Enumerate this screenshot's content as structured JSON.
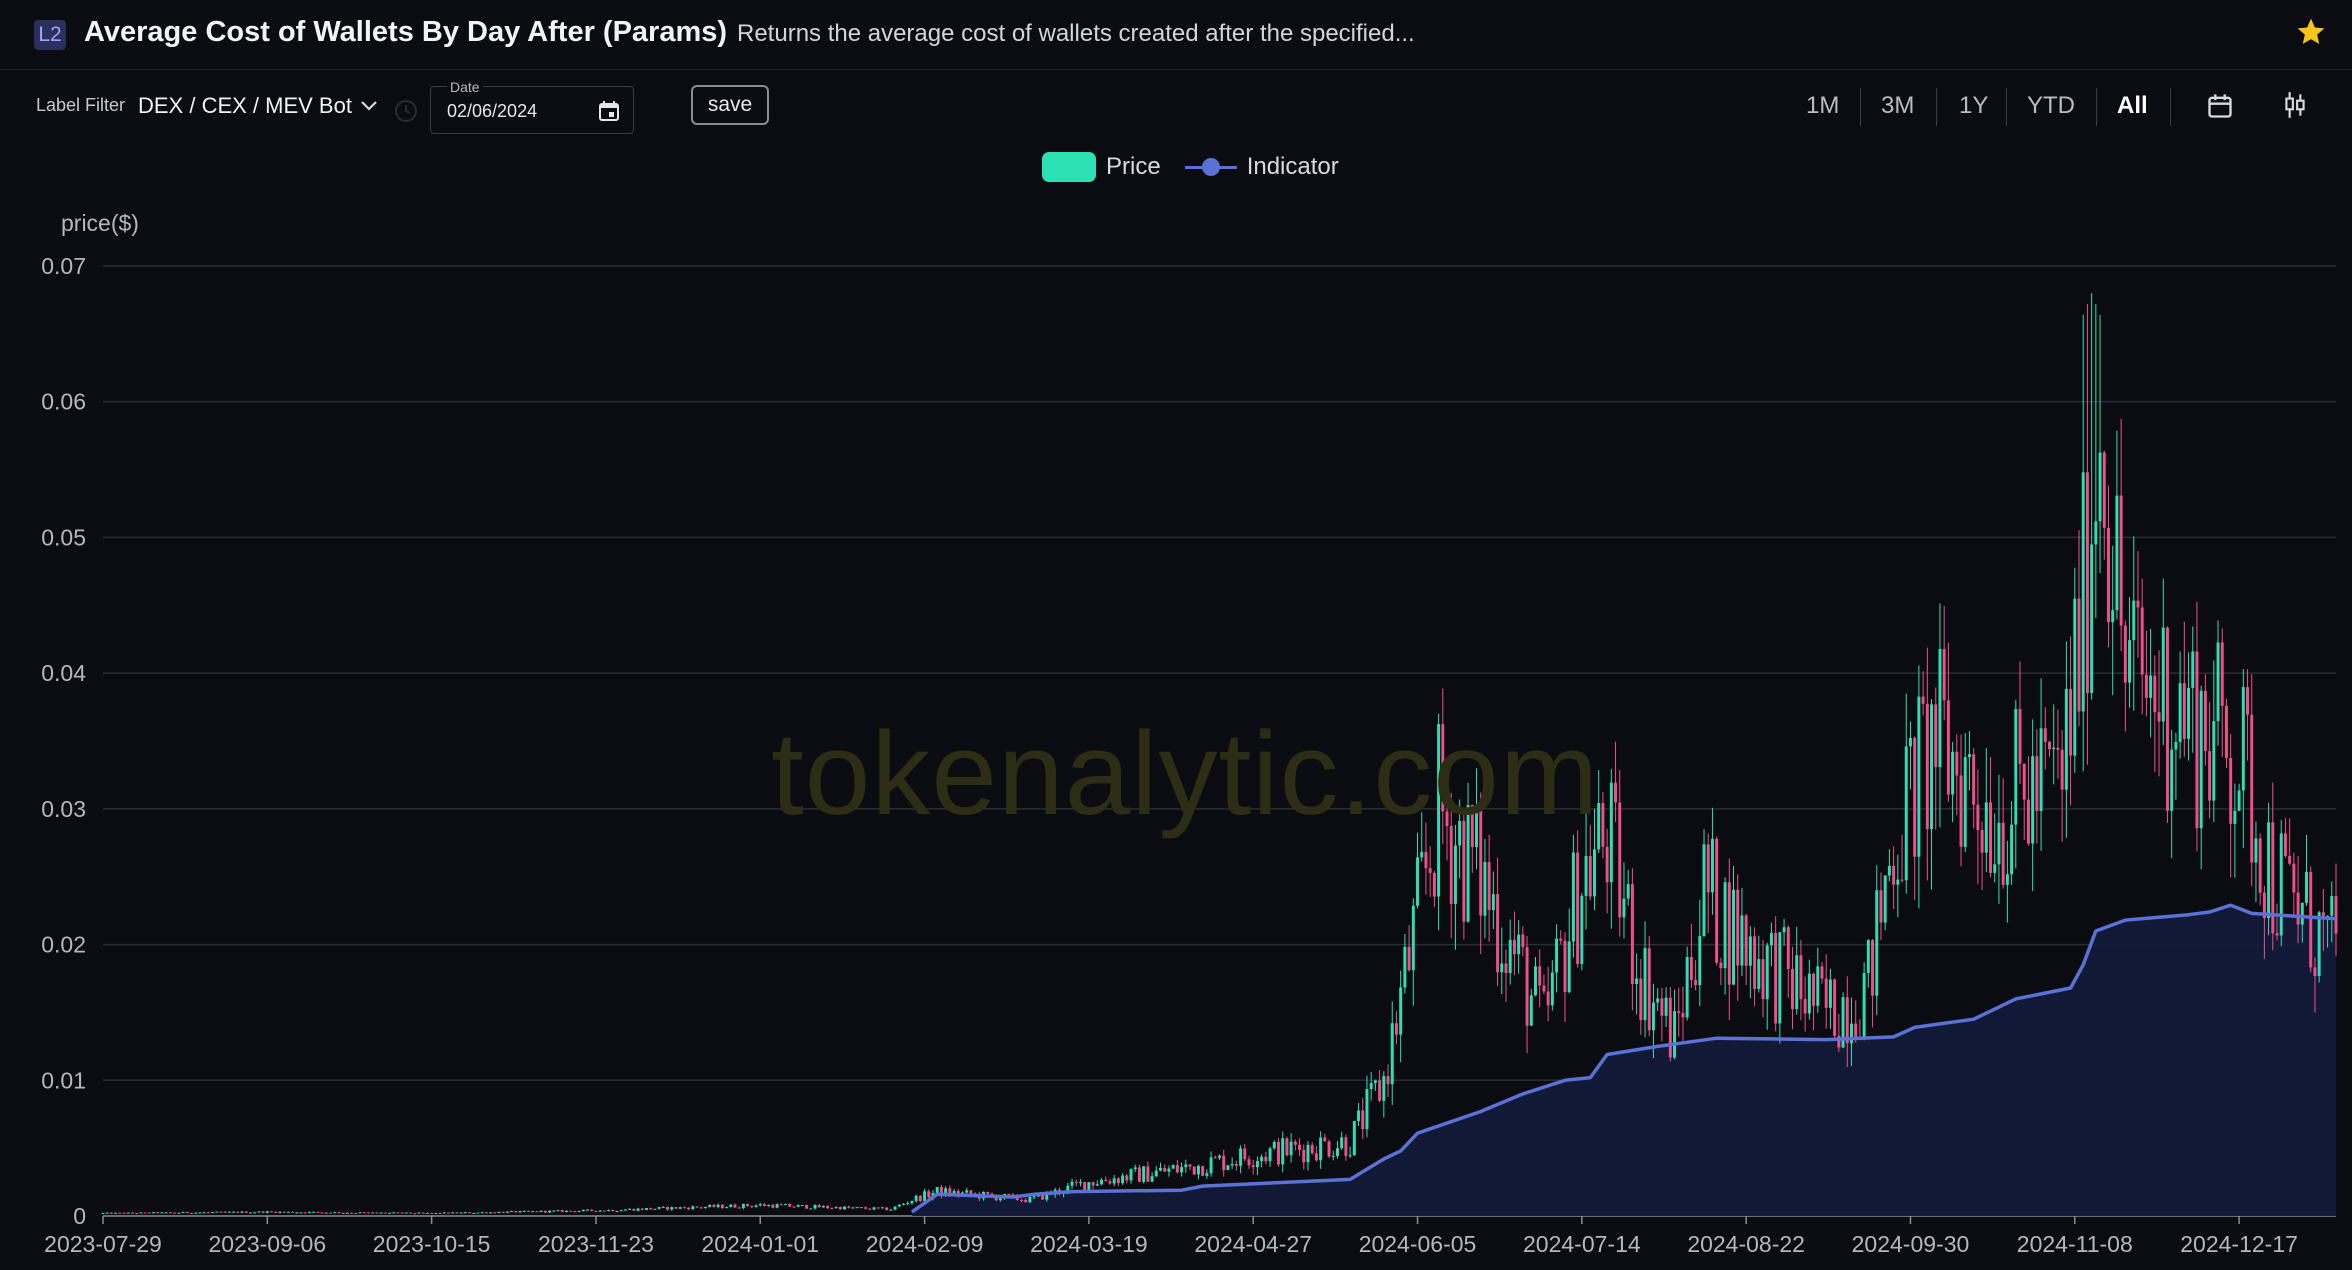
{
  "header": {
    "badge": "L2",
    "title": "Average Cost of Wallets By Day After (Params)",
    "subtitle": "Returns the average cost of wallets created after the specified...",
    "star_icon": "star-icon",
    "star_color": "#f5c518"
  },
  "controls": {
    "label_filter_label": "Label Filter",
    "label_filter_value": "DEX / CEX / MEV Bot",
    "date_label": "Date",
    "date_value": "02/06/2024",
    "save_label": "save",
    "ranges": [
      "1M",
      "3M",
      "1Y",
      "YTD",
      "All"
    ],
    "active_range": "All",
    "icons": [
      "chevron-down-icon",
      "clock-icon",
      "calendar-icon",
      "candlestick-icon"
    ]
  },
  "watermark": "tokenalytic.com",
  "colors": {
    "up": "#2de0b4",
    "down": "#f0508a",
    "indicator": "#5a71d6",
    "indicator_fill": "#131a3a",
    "grid": "#2a2c34",
    "background": "#0b0c11"
  },
  "chart_data": {
    "type": "candlestick",
    "title": "",
    "ylabel": "price($)",
    "xlabel": "",
    "ylim": [
      0,
      0.07
    ],
    "y_ticks": [
      "0",
      "0.01",
      "0.02",
      "0.03",
      "0.04",
      "0.05",
      "0.06",
      "0.07"
    ],
    "x_ticks": [
      "2023-07-29",
      "2023-09-06",
      "2023-10-15",
      "2023-11-23",
      "2024-01-01",
      "2024-02-09",
      "2024-03-19",
      "2024-04-27",
      "2024-06-05",
      "2024-07-14",
      "2024-08-22",
      "2024-09-30",
      "2024-11-08",
      "2024-12-17"
    ],
    "x_range": [
      "2023-07-29",
      "2025-01-09"
    ],
    "grid": true,
    "legend_position": "top-center",
    "series": [
      {
        "name": "Price",
        "kind": "candlestick",
        "close_keypoints": [
          [
            "2023-07-29",
            0.0002
          ],
          [
            "2023-09-06",
            0.0003
          ],
          [
            "2023-10-15",
            0.0002
          ],
          [
            "2023-11-23",
            0.0004
          ],
          [
            "2024-01-01",
            0.0008
          ],
          [
            "2024-02-01",
            0.0005
          ],
          [
            "2024-02-06",
            0.0012
          ],
          [
            "2024-02-12",
            0.0018
          ],
          [
            "2024-03-05",
            0.0012
          ],
          [
            "2024-03-19",
            0.0025
          ],
          [
            "2024-04-10",
            0.0035
          ],
          [
            "2024-04-27",
            0.0045
          ],
          [
            "2024-05-20",
            0.0055
          ],
          [
            "2024-05-28",
            0.01
          ],
          [
            "2024-06-05",
            0.022
          ],
          [
            "2024-06-10",
            0.03
          ],
          [
            "2024-06-20",
            0.025
          ],
          [
            "2024-07-05",
            0.014
          ],
          [
            "2024-07-14",
            0.025
          ],
          [
            "2024-07-20",
            0.028
          ],
          [
            "2024-07-28",
            0.018
          ],
          [
            "2024-08-05",
            0.013
          ],
          [
            "2024-08-12",
            0.024
          ],
          [
            "2024-08-22",
            0.02
          ],
          [
            "2024-09-10",
            0.015
          ],
          [
            "2024-09-20",
            0.017
          ],
          [
            "2024-09-26",
            0.028
          ],
          [
            "2024-10-06",
            0.035
          ],
          [
            "2024-10-20",
            0.03
          ],
          [
            "2024-11-05",
            0.032
          ],
          [
            "2024-11-10",
            0.045
          ],
          [
            "2024-11-14",
            0.06
          ],
          [
            "2024-11-20",
            0.04
          ],
          [
            "2024-12-01",
            0.038
          ],
          [
            "2024-12-17",
            0.034
          ],
          [
            "2024-12-25",
            0.025
          ],
          [
            "2025-01-09",
            0.019
          ]
        ],
        "peak_high": 0.068,
        "peak_date": "2024-11-12"
      },
      {
        "name": "Indicator",
        "kind": "area-line",
        "values": [
          [
            "2024-02-06",
            0.0003
          ],
          [
            "2024-02-12",
            0.0016
          ],
          [
            "2024-03-01",
            0.0014
          ],
          [
            "2024-03-06",
            0.0016
          ],
          [
            "2024-03-15",
            0.0018
          ],
          [
            "2024-04-10",
            0.0019
          ],
          [
            "2024-04-15",
            0.0022
          ],
          [
            "2024-05-20",
            0.0027
          ],
          [
            "2024-05-28",
            0.0042
          ],
          [
            "2024-06-01",
            0.0048
          ],
          [
            "2024-06-05",
            0.0061
          ],
          [
            "2024-06-20",
            0.0077
          ],
          [
            "2024-06-30",
            0.009
          ],
          [
            "2024-07-10",
            0.01
          ],
          [
            "2024-07-16",
            0.0102
          ],
          [
            "2024-07-20",
            0.0119
          ],
          [
            "2024-08-01",
            0.0125
          ],
          [
            "2024-08-15",
            0.0131
          ],
          [
            "2024-09-10",
            0.013
          ],
          [
            "2024-09-26",
            0.0132
          ],
          [
            "2024-10-01",
            0.0139
          ],
          [
            "2024-10-15",
            0.0145
          ],
          [
            "2024-10-25",
            0.016
          ],
          [
            "2024-11-07",
            0.0168
          ],
          [
            "2024-11-10",
            0.0185
          ],
          [
            "2024-11-13",
            0.021
          ],
          [
            "2024-11-20",
            0.0218
          ],
          [
            "2024-12-05",
            0.0222
          ],
          [
            "2024-12-10",
            0.0224
          ],
          [
            "2024-12-15",
            0.0229
          ],
          [
            "2024-12-20",
            0.0223
          ],
          [
            "2025-01-09",
            0.0219
          ]
        ]
      }
    ]
  }
}
